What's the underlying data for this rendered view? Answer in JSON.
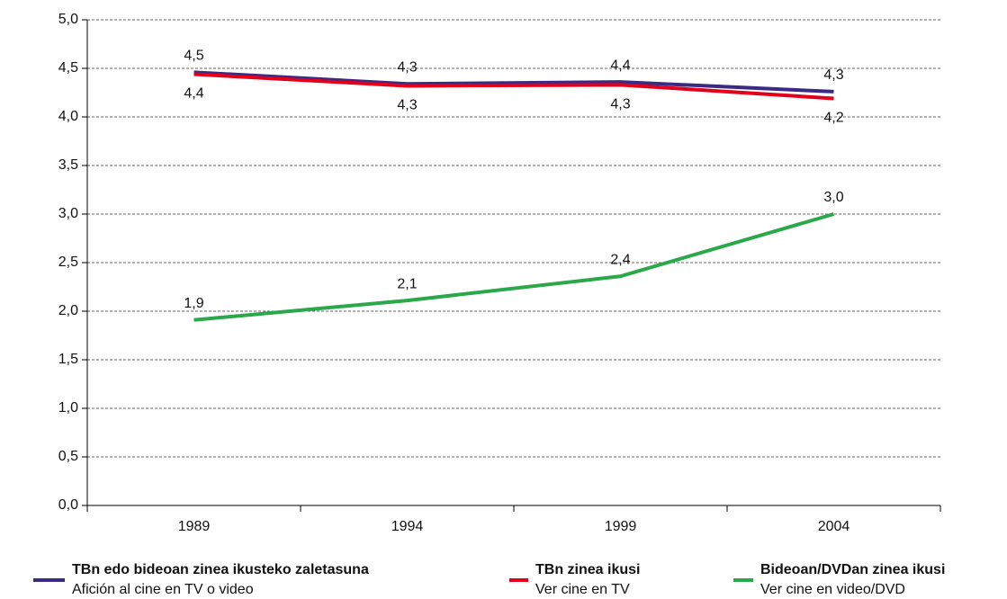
{
  "chart_data": {
    "type": "line",
    "categories": [
      "1989",
      "1994",
      "1999",
      "2004"
    ],
    "ylim": [
      0,
      5
    ],
    "yticks": [
      {
        "value": 0,
        "label": "0,0"
      },
      {
        "value": 0.5,
        "label": "0,5"
      },
      {
        "value": 1,
        "label": "1,0"
      },
      {
        "value": 1.5,
        "label": "1,5"
      },
      {
        "value": 2,
        "label": "2,0"
      },
      {
        "value": 2.5,
        "label": "2,5"
      },
      {
        "value": 3,
        "label": "3,0"
      },
      {
        "value": 3.5,
        "label": "3,5"
      },
      {
        "value": 4,
        "label": "4,0"
      },
      {
        "value": 4.5,
        "label": "4,5"
      },
      {
        "value": 5,
        "label": "5,0"
      }
    ],
    "grid": true,
    "legend": "bottom",
    "series": [
      {
        "name": "TBn edo bideoan zinea ikusteko zaletasuna",
        "translation": "Afición al cine en TV o video",
        "color": "#3b2a84",
        "values": [
          4.46,
          4.34,
          4.36,
          4.26
        ],
        "value_labels": [
          "4,5",
          "4,3",
          "4,4",
          "4,3"
        ]
      },
      {
        "name": "TBn zinea ikusi",
        "translation": "Ver cine en TV",
        "color": "#e3001b",
        "values": [
          4.44,
          4.32,
          4.33,
          4.19
        ],
        "value_labels": [
          "4,4",
          "4,3",
          "4,3",
          "4,2"
        ]
      },
      {
        "name": "Bideoan/DVDan zinea ikusi",
        "translation": "Ver cine en video/DVD",
        "color": "#2aa84a",
        "values": [
          1.91,
          2.11,
          2.36,
          3.0
        ],
        "value_labels": [
          "1,9",
          "2,1",
          "2,4",
          "3,0"
        ]
      }
    ]
  }
}
